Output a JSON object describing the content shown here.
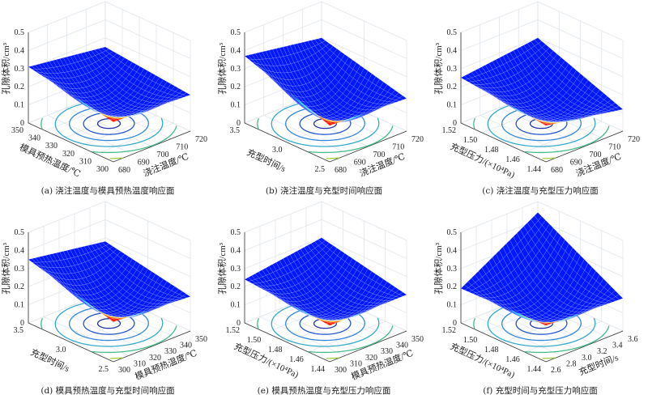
{
  "chart_data": [
    {
      "type": "surface",
      "caption": "(a) 浇注温度与模具预热温度响应面",
      "xlabel": "浇注温度/℃",
      "ylabel": "模具预热温度/℃",
      "zlabel": "孔隙体积/cm³",
      "xticks": [
        "680",
        "690",
        "700",
        "710",
        "720"
      ],
      "yticks": [
        "300",
        "310",
        "320",
        "330",
        "340",
        "350"
      ],
      "zticks": [
        "0",
        "0.1",
        "0.2",
        "0.3",
        "0.4",
        "0.5"
      ],
      "zlim": [
        0,
        0.5
      ],
      "corners": {
        "xmin_ymin": 0.22,
        "xmax_ymin": 0.2,
        "xmax_ymax": 0.25,
        "xmin_ymax": 0.31
      },
      "min": 0.1,
      "contours": true
    },
    {
      "type": "surface",
      "caption": "(b) 浇注温度与充型时间响应面",
      "xlabel": "浇注温度/℃",
      "ylabel": "充型时间/s",
      "zlabel": "孔隙体积/cm³",
      "xticks": [
        "680",
        "690",
        "700",
        "710",
        "720"
      ],
      "yticks": [
        "2.5",
        "3.0",
        "3.5"
      ],
      "zticks": [
        "0",
        "0.1",
        "0.2",
        "0.3",
        "0.4",
        "0.5"
      ],
      "zlim": [
        0,
        0.5
      ],
      "corners": {
        "xmin_ymin": 0.2,
        "xmax_ymin": 0.18,
        "xmax_ymax": 0.3,
        "xmin_ymax": 0.37
      },
      "min": 0.08,
      "contours": true
    },
    {
      "type": "surface",
      "caption": "(c) 浇注温度与充型压力响应面",
      "xlabel": "浇注温度/℃",
      "ylabel": "充型压力/(×10⁴Pa)",
      "zlabel": "孔隙体积/cm³",
      "xticks": [
        "680",
        "690",
        "700",
        "710",
        "720"
      ],
      "yticks": [
        "1.44",
        "1.46",
        "1.48",
        "1.50",
        "1.52"
      ],
      "zticks": [
        "0",
        "0.1",
        "0.2",
        "0.3",
        "0.4",
        "0.5"
      ],
      "zlim": [
        0,
        0.5
      ],
      "corners": {
        "xmin_ymin": 0.2,
        "xmax_ymin": 0.12,
        "xmax_ymax": 0.3,
        "xmin_ymax": 0.25
      },
      "min": 0.09,
      "contours": true
    },
    {
      "type": "surface",
      "caption": "(d) 模具预热温度与充型时间响应面",
      "xlabel": "模具预热温度/℃",
      "ylabel": "充型时间/s",
      "zlabel": "孔隙体积/cm³",
      "xticks": [
        "300",
        "310",
        "320",
        "330",
        "340",
        "350"
      ],
      "yticks": [
        "2.5",
        "3.0",
        "3.5"
      ],
      "zticks": [
        "0",
        "0.1",
        "0.2",
        "0.3",
        "0.4",
        "0.5"
      ],
      "zlim": [
        0,
        0.5
      ],
      "corners": {
        "xmin_ymin": 0.22,
        "xmax_ymin": 0.19,
        "xmax_ymax": 0.28,
        "xmin_ymax": 0.35
      },
      "min": 0.1,
      "contours": true
    },
    {
      "type": "surface",
      "caption": "(e) 模具预热温度与充型压力响应面",
      "xlabel": "模具预热温度/℃",
      "ylabel": "充型压力/(×10⁴Pa)",
      "zlabel": "孔隙体积/cm³",
      "xticks": [
        "300",
        "310",
        "320",
        "330",
        "340",
        "350"
      ],
      "yticks": [
        "1.44",
        "1.46",
        "1.48",
        "1.50",
        "1.52"
      ],
      "zticks": [
        "0",
        "0.1",
        "0.2",
        "0.3",
        "0.4",
        "0.5"
      ],
      "zlim": [
        0,
        0.5
      ],
      "corners": {
        "xmin_ymin": 0.2,
        "xmax_ymin": 0.2,
        "xmax_ymax": 0.3,
        "xmin_ymax": 0.24
      },
      "min": 0.09,
      "contours": true
    },
    {
      "type": "surface",
      "caption": "(f) 充型时间与充型压力响应面",
      "xlabel": "充型时间/s",
      "ylabel": "充型压力/(×10⁴Pa)",
      "zlabel": "孔隙体积/cm³",
      "xticks": [
        "2.6",
        "2.8",
        "3.0",
        "3.2",
        "3.4",
        "3.6"
      ],
      "yticks": [
        "1.44",
        "1.46",
        "1.48",
        "1.50",
        "1.52"
      ],
      "zticks": [
        "0",
        "0.1",
        "0.2",
        "0.3",
        "0.4",
        "0.5"
      ],
      "zlim": [
        0,
        0.5
      ],
      "corners": {
        "xmin_ymin": 0.2,
        "xmax_ymin": 0.18,
        "xmax_ymax": 0.44,
        "xmin_ymax": 0.19
      },
      "min": 0.09,
      "contours": true
    }
  ]
}
